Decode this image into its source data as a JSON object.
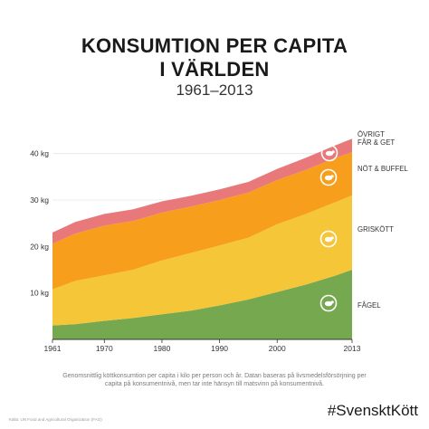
{
  "header": {
    "title_line1": "KONSUMTION PER CAPITA",
    "title_line2": "I VÄRLDEN",
    "years": "1961–2013"
  },
  "chart_data": {
    "type": "area",
    "stacked": true,
    "x": [
      1961,
      1965,
      1970,
      1975,
      1980,
      1985,
      1990,
      1995,
      2000,
      2005,
      2010,
      2013
    ],
    "series": [
      {
        "name": "FÅGEL",
        "color": "#76a84f",
        "values": [
          3,
          3.3,
          4,
          4.6,
          5.4,
          6.2,
          7.3,
          8.6,
          10.2,
          11.8,
          13.7,
          15
        ]
      },
      {
        "name": "GRISKÖTT",
        "color": "#f5c637",
        "values": [
          7.8,
          9.3,
          9.8,
          10.4,
          11.6,
          12.4,
          12.9,
          13.3,
          14.6,
          15.2,
          15.8,
          16
        ]
      },
      {
        "name": "NÖT & BUFFEL",
        "color": "#f79f1c",
        "values": [
          9.8,
          10.2,
          10.7,
          10.5,
          10.3,
          10,
          9.8,
          9.7,
          9.5,
          9.5,
          9.5,
          9.3
        ]
      },
      {
        "name": "ÖVRIGT FÅR & GET",
        "color": "#e8787a",
        "values": [
          2.4,
          2.5,
          2.5,
          2.5,
          2.4,
          2.3,
          2.3,
          2.3,
          2.4,
          2.6,
          2.7,
          2.9
        ]
      }
    ],
    "y_ticks": [
      10,
      20,
      30,
      40
    ],
    "y_tick_labels": [
      "10 kg",
      "20 kg",
      "30 kg",
      "40 kg"
    ],
    "x_ticks": [
      1961,
      1970,
      1980,
      1990,
      2000,
      2013
    ],
    "ylim": [
      0,
      45
    ],
    "xlim": [
      1961,
      2013
    ],
    "labels": {
      "ovrigt_line1": "ÖVRIGT",
      "ovrigt_line2": "FÅR & GET",
      "not": "NÖT & BUFFEL",
      "gris": "GRISKÖTT",
      "fagel": "FÅGEL"
    },
    "icons": [
      "sheep-icon",
      "cow-icon",
      "pig-icon",
      "chicken-icon"
    ],
    "grid": true,
    "gridline_color": "#e6e6e6"
  },
  "footer": {
    "caption": "Genomsnittlig köttkonsumtion per capita i kilo per person och år. Datan baseras på livsmedelsförsörjning per capita på konsumentnivå, men tar inte hänsyn till matsvinn på konsumentnivå.",
    "source": "Källa: UN Food and Agricultural Organization (FAO)",
    "hashtag": "#SvensktKött"
  }
}
